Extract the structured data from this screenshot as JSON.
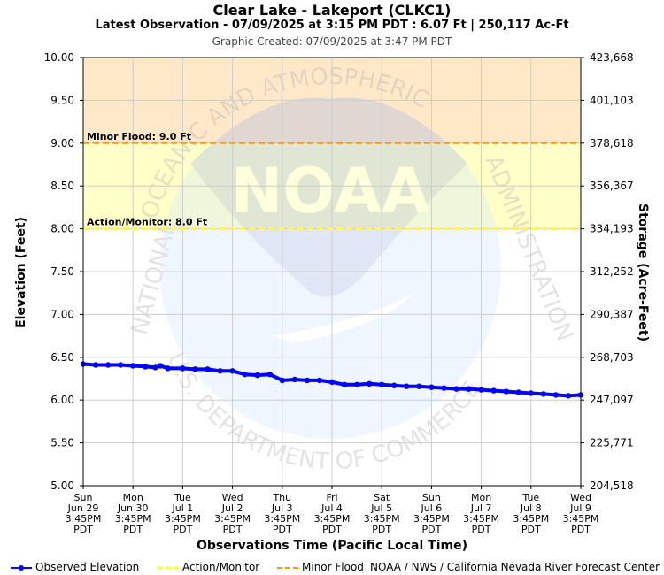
{
  "header": {
    "title": "Clear Lake - Lakeport (CLKC1)",
    "subtitle": "Latest Observation - 07/09/2025 at 3:15 PM PDT : 6.07 Ft | 250,117 Ac-Ft",
    "created": "Graphic Created: 07/09/2025 at 3:47 PM PDT"
  },
  "watermark": {
    "arc_top": "OCEANIC AND ATMOSPHERIC",
    "arc_left": "NATIONAL",
    "arc_right": "ADMINISTRATION",
    "arc_bottom": "U.S. DEPARTMENT OF COMMERCE",
    "logo": "NOAA"
  },
  "legend": {
    "observed": "Observed Elevation",
    "action": "Action/Monitor",
    "minor": "Minor Flood",
    "credit": "NOAA / NWS / California Nevada River Forecast Center"
  },
  "colors": {
    "observed": "#0000ff",
    "action_line": "#ffff33",
    "minor_line": "#ff9900",
    "action_band": "#ffffc8",
    "minor_band": "#ffe8c8",
    "grid": "#cccccc"
  },
  "chart_data": {
    "type": "line",
    "xlabel": "Observations Time (Pacific Local Time)",
    "ylabel": "Elevation (Feet)",
    "ylabel_right": "Storage (Acre-Feet)",
    "ylim": [
      5.0,
      10.0
    ],
    "y_ticks": [
      "5.00",
      "5.50",
      "6.00",
      "6.50",
      "7.00",
      "7.50",
      "8.00",
      "8.50",
      "9.00",
      "9.50",
      "10.00"
    ],
    "y2_ticks": [
      "204,518",
      "225,771",
      "247,097",
      "268,703",
      "290,387",
      "312,252",
      "334,193",
      "356,367",
      "378,618",
      "401,103",
      "423,668"
    ],
    "x_ticks": [
      [
        "Sun",
        "Jun 29",
        "3:45PM",
        "PDT"
      ],
      [
        "Mon",
        "Jun 30",
        "3:45PM",
        "PDT"
      ],
      [
        "Tue",
        "Jul 1",
        "3:45PM",
        "PDT"
      ],
      [
        "Wed",
        "Jul 2",
        "3:45PM",
        "PDT"
      ],
      [
        "Thu",
        "Jul 3",
        "3:45PM",
        "PDT"
      ],
      [
        "Fri",
        "Jul 4",
        "3:45PM",
        "PDT"
      ],
      [
        "Sat",
        "Jul 5",
        "3:45PM",
        "PDT"
      ],
      [
        "Sun",
        "Jul 6",
        "3:45PM",
        "PDT"
      ],
      [
        "Mon",
        "Jul 7",
        "3:45PM",
        "PDT"
      ],
      [
        "Tue",
        "Jul 8",
        "3:45PM",
        "PDT"
      ],
      [
        "Wed",
        "Jul 9",
        "3:45PM",
        "PDT"
      ]
    ],
    "thresholds": [
      {
        "label": "Action/Monitor: 8.0 Ft",
        "value": 8.0
      },
      {
        "label": "Minor Flood: 9.0 Ft",
        "value": 9.0
      }
    ],
    "series": [
      {
        "name": "Observed Elevation",
        "x": [
          0.0,
          0.25,
          0.5,
          0.75,
          1.0,
          1.25,
          1.45,
          1.55,
          1.7,
          2.0,
          2.25,
          2.5,
          2.75,
          3.0,
          3.25,
          3.5,
          3.75,
          4.0,
          4.25,
          4.5,
          4.75,
          5.0,
          5.25,
          5.5,
          5.75,
          6.0,
          6.25,
          6.5,
          6.75,
          7.0,
          7.25,
          7.5,
          7.75,
          8.0,
          8.25,
          8.5,
          8.75,
          9.0,
          9.25,
          9.5,
          9.75,
          10.0
        ],
        "y": [
          6.42,
          6.41,
          6.41,
          6.41,
          6.4,
          6.39,
          6.38,
          6.4,
          6.37,
          6.37,
          6.36,
          6.36,
          6.34,
          6.34,
          6.3,
          6.29,
          6.3,
          6.23,
          6.24,
          6.23,
          6.23,
          6.21,
          6.18,
          6.18,
          6.19,
          6.18,
          6.17,
          6.16,
          6.16,
          6.15,
          6.14,
          6.13,
          6.13,
          6.12,
          6.11,
          6.1,
          6.09,
          6.08,
          6.07,
          6.06,
          6.05,
          6.06
        ]
      }
    ]
  }
}
